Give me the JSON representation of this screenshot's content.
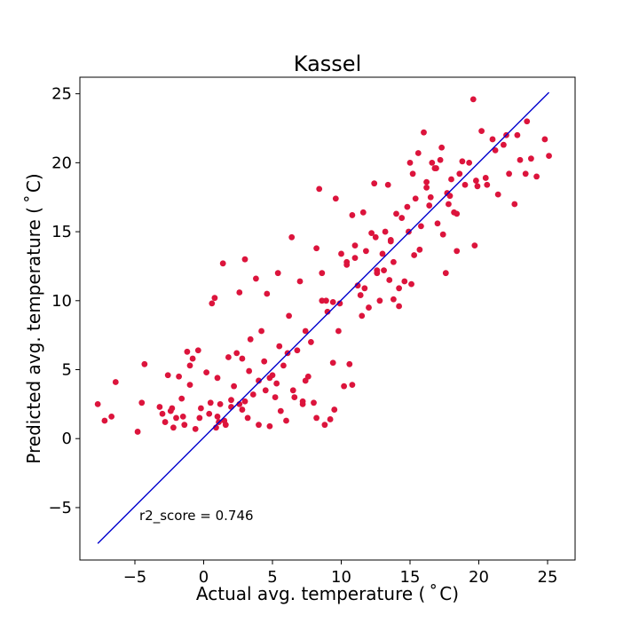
{
  "chart_data": {
    "type": "scatter",
    "title": "Kassel",
    "xlabel": "Actual avg. temperature ($^\\circ$C)",
    "ylabel": "Predicted avg. temperature ($^\\circ$C)",
    "xlabel_display": "Actual avg. temperature ( ˚ C)",
    "ylabel_display": "Predicted avg. temperature ( ˚ C)",
    "xlim": [
      -9.0,
      27.0
    ],
    "ylim": [
      -8.8,
      26.2
    ],
    "xticks": [
      -5,
      0,
      5,
      10,
      15,
      20,
      25
    ],
    "xtick_labels": [
      "−5",
      "0",
      "5",
      "10",
      "15",
      "20",
      "25"
    ],
    "yticks": [
      -5,
      0,
      5,
      10,
      15,
      20,
      25
    ],
    "ytick_labels": [
      "−5",
      "0",
      "5",
      "10",
      "15",
      "20",
      "25"
    ],
    "grid": false,
    "legend": "none",
    "annotation": "r2_score = 0.746",
    "colors": {
      "points": "#dc143c",
      "reference_line": "#0000cd",
      "axes": "#000000"
    },
    "reference_line": {
      "x": [
        -7.7,
        25.1
      ],
      "y": [
        -7.6,
        25.1
      ]
    },
    "series": [
      {
        "marker": "circle",
        "x": [
          -7.7,
          -7.2,
          -6.4,
          -6.7,
          -4.8,
          -4.5,
          -4.3,
          -3.2,
          -3.0,
          -2.8,
          -2.6,
          -2.4,
          -2.2,
          -2.0,
          -1.8,
          -1.6,
          -1.4,
          -1.2,
          -1.0,
          -0.8,
          -0.6,
          -0.4,
          -0.2,
          0.2,
          0.4,
          0.6,
          0.8,
          1.0,
          1.2,
          1.4,
          1.6,
          1.8,
          2.0,
          2.2,
          2.4,
          2.6,
          2.8,
          3.0,
          3.2,
          3.4,
          3.6,
          3.8,
          4.0,
          4.2,
          4.4,
          4.6,
          4.8,
          5.0,
          5.2,
          5.4,
          5.6,
          5.8,
          6.0,
          6.2,
          6.4,
          6.6,
          6.8,
          7.0,
          7.2,
          7.4,
          7.6,
          7.8,
          8.0,
          8.2,
          8.4,
          8.6,
          8.8,
          9.0,
          9.2,
          9.4,
          9.6,
          9.8,
          10.0,
          10.2,
          10.4,
          10.6,
          10.8,
          11.0,
          11.2,
          11.4,
          11.6,
          11.8,
          12.0,
          12.2,
          12.4,
          12.6,
          12.8,
          13.0,
          13.2,
          13.4,
          13.6,
          13.8,
          14.0,
          14.2,
          14.4,
          14.6,
          14.8,
          15.0,
          15.2,
          15.4,
          15.6,
          15.8,
          16.0,
          16.2,
          16.4,
          16.6,
          16.8,
          17.0,
          17.2,
          17.4,
          17.6,
          17.8,
          18.0,
          18.2,
          18.4,
          18.6,
          18.8,
          19.0,
          19.6,
          19.8,
          20.2,
          20.6,
          21.0,
          21.4,
          21.8,
          22.2,
          22.6,
          23.0,
          23.4,
          23.8,
          24.2,
          24.8,
          25.1,
          -1.5,
          0.5,
          1.5,
          3.0,
          4.8,
          6.5,
          8.2,
          9.5,
          10.8,
          12.6,
          13.8,
          15.3,
          16.5,
          17.9,
          19.9,
          22.0,
          0.9,
          3.3,
          5.3,
          7.2,
          9.4,
          11.5,
          13.1,
          14.9,
          16.9,
          18.4,
          21.2,
          -0.3,
          2.0,
          4.0,
          6.1,
          8.6,
          10.4,
          12.5,
          14.2,
          16.2,
          19.3,
          23.5,
          1.0,
          2.6,
          4.5,
          7.4,
          9.9,
          11.7,
          13.5,
          15.7,
          17.7,
          20.5,
          -2.3,
          -1.0,
          1.1,
          2.8,
          5.5,
          8.9,
          11.0,
          13.6,
          15.1,
          17.3,
          19.7,
          22.8
        ],
        "y": [
          2.5,
          1.3,
          4.1,
          1.6,
          0.5,
          2.6,
          5.4,
          2.3,
          1.8,
          1.2,
          4.6,
          2.0,
          0.8,
          1.5,
          4.5,
          2.9,
          1.0,
          6.3,
          3.9,
          5.8,
          0.7,
          6.4,
          2.2,
          4.8,
          1.8,
          9.8,
          10.2,
          1.6,
          2.5,
          12.7,
          1.0,
          5.9,
          2.3,
          3.8,
          6.2,
          10.6,
          2.1,
          13.0,
          1.5,
          7.2,
          3.2,
          11.6,
          1.0,
          7.8,
          5.6,
          10.5,
          0.9,
          4.6,
          3.0,
          12.0,
          2.0,
          5.3,
          1.3,
          8.9,
          14.6,
          3.0,
          6.4,
          11.4,
          2.5,
          7.8,
          4.5,
          7.0,
          2.6,
          13.8,
          18.1,
          12.0,
          1.0,
          9.2,
          1.4,
          9.9,
          17.4,
          7.8,
          13.4,
          3.8,
          12.6,
          5.4,
          16.2,
          14.0,
          11.1,
          10.4,
          16.4,
          13.6,
          9.5,
          14.9,
          18.5,
          12.0,
          10.0,
          13.4,
          15.0,
          18.4,
          14.4,
          10.1,
          16.3,
          9.6,
          16.0,
          11.4,
          16.8,
          20.0,
          19.2,
          17.4,
          20.7,
          15.4,
          22.2,
          18.6,
          16.9,
          20.0,
          19.6,
          15.6,
          20.2,
          14.8,
          12.0,
          17.0,
          18.8,
          16.4,
          13.6,
          19.2,
          20.1,
          18.4,
          24.6,
          18.7,
          22.3,
          18.4,
          21.7,
          17.7,
          21.3,
          19.2,
          17.0,
          20.2,
          19.2,
          20.3,
          19.0,
          21.7,
          20.5,
          1.6,
          2.6,
          1.3,
          2.7,
          4.4,
          3.5,
          1.5,
          2.1,
          3.9,
          12.2,
          12.8,
          13.3,
          17.5,
          17.6,
          18.3,
          22.0,
          0.8,
          4.9,
          4.0,
          2.7,
          5.5,
          8.9,
          12.2,
          15.0,
          19.6,
          16.3,
          20.9,
          1.5,
          2.8,
          4.2,
          6.2,
          10.0,
          12.8,
          14.6,
          10.9,
          18.2,
          20.0,
          23.0,
          4.4,
          2.5,
          3.5,
          4.2,
          9.8,
          10.9,
          11.5,
          13.7,
          17.8,
          18.9,
          2.2,
          5.3,
          1.2,
          5.8,
          6.7,
          10.0,
          13.1,
          14.3,
          11.2,
          21.1,
          14.0,
          22.0
        ]
      }
    ]
  }
}
